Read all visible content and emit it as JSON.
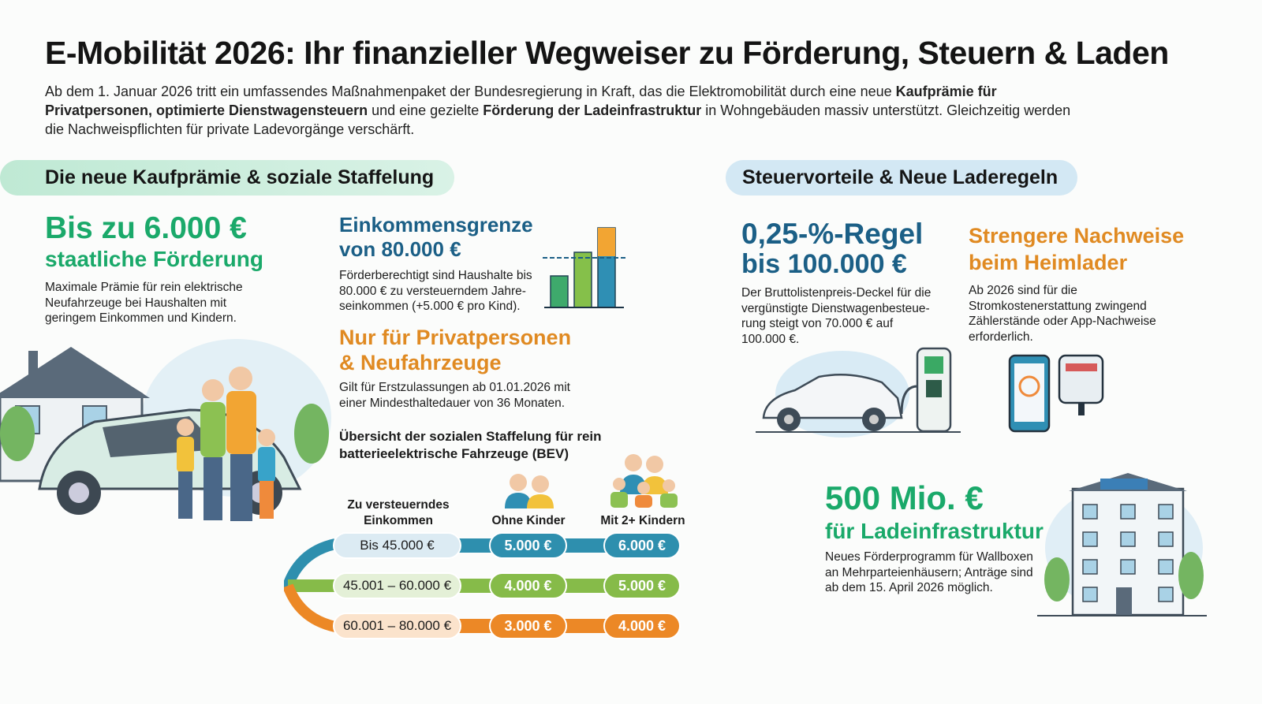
{
  "title": "E-Mobilität 2026: Ihr finanzieller Wegweiser zu Förderung, Steuern & Laden",
  "intro": {
    "p1": "Ab dem 1. Januar 2026 tritt ein umfassendes Maßnahmenpaket der Bundesregierung in Kraft, das die Elektromobilität durch eine neue ",
    "b1": "Kaufprämie für Privatpersonen, optimierte Dienstwagensteuern",
    "p2": " und eine gezielte ",
    "b2": "Förderung der Ladeinfrastruktur",
    "p3": " in Wohngebäuden massiv unterstützt. Gleichzeitig werden die Nachweispflichten für private Ladevorgänge verschärft."
  },
  "left_section": {
    "heading": "Die neue Kaufprämie & soziale Staffelung",
    "max": {
      "headline": "Bis zu 6.000 €",
      "sub": "staatliche Förderung",
      "text": "Maximale Prämie für rein elektrische Neufahrzeuge bei Haushalten mit geringem Einkommen und Kindern."
    },
    "income": {
      "headline1": "Einkommensgrenze",
      "headline2": "von 80.000 €",
      "text": "Förderberechtigt sind Haushalte bis 80.000 € zu versteuerndem Jahre-seinkommen (+5.000 € pro Kind)."
    },
    "private": {
      "headline1": "Nur für Privatpersonen",
      "headline2": "& Neufahrzeuge",
      "text": "Gilt für Erstzulassungen ab 01.01.2026 mit einer Mindesthaltedauer von 36 Monaten."
    },
    "table": {
      "title": "Übersicht der sozialen Staffelung für rein batterieelektrische Fahrzeuge (BEV)",
      "headers": [
        "Zu versteuerndes Einkommen",
        "Ohne Kinder",
        "Mit 2+ Kindern"
      ],
      "rows": [
        {
          "income": "Bis 45.000 €",
          "ohne": "5.000 €",
          "mit": "6.000 €",
          "color": "#2e8fae",
          "light": "#dcebf3"
        },
        {
          "income": "45.001 – 60.000 €",
          "ohne": "4.000 €",
          "mit": "5.000 €",
          "color": "#86bb49",
          "light": "#e4f0d7"
        },
        {
          "income": "60.001 – 80.000 €",
          "ohne": "3.000 €",
          "mit": "4.000 €",
          "color": "#ec8826",
          "light": "#fbe3cc"
        }
      ]
    }
  },
  "right_section": {
    "heading": "Steuervorteile & Neue Laderegeln",
    "tax": {
      "headline1": "0,25-%-Regel",
      "headline2": "bis 100.000 €",
      "text": "Der Bruttolistenpreis-Deckel für die vergünstigte Dienstwagenbesteue-rung steigt von 70.000 € auf 100.000 €."
    },
    "proof": {
      "headline1": "Strengere Nachweise",
      "headline2": "beim Heimlader",
      "text": "Ab 2026 sind für die Stromkostenerstattung zwingend Zählerstände oder App-Nachweise erforderlich."
    },
    "infra": {
      "headline1": "500 Mio. €",
      "headline2": "für Ladeinfrastruktur",
      "text": "Neues Förderprogramm für Wallboxen an Mehrparteienhäusern; Anträge sind ab dem 15. April 2026 möglich."
    }
  },
  "colors": {
    "green": "#1aa96a",
    "blue": "#1b5f86",
    "orange": "#e08a22",
    "mint": "#cdeedd",
    "sky": "#d3e8f4"
  }
}
